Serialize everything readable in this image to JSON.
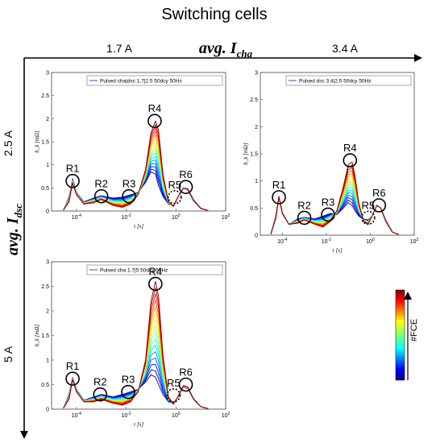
{
  "figure": {
    "title": "Switching cells",
    "x_axis_label": "avg. I",
    "x_axis_sub": "cha",
    "y_axis_label": "avg. I",
    "y_axis_sub": "dsc",
    "col_labels": [
      "1.7 A",
      "3.4 A"
    ],
    "row_labels": [
      "2.5 A",
      "5 A"
    ],
    "colorbar_label": "#FCE"
  },
  "chart_data": [
    {
      "type": "line",
      "legend": "Pulsed cha|dsc 1.7|2.5 50dcy 50Hz",
      "ylabel": "h_k [mΩ]",
      "xlabel": "τ [s]",
      "x_scale": "log",
      "xlim": [
        1e-05,
        100
      ],
      "ylim": [
        0,
        3
      ],
      "yticks": [
        0,
        0.5,
        1,
        1.5,
        2,
        2.5,
        3
      ],
      "xticks": [
        "10^-4",
        "10^-2",
        "10^0",
        "10^2"
      ],
      "annotations": [
        {
          "label": "R1",
          "tau": 7e-05,
          "h": 0.65,
          "style": "solid"
        },
        {
          "label": "R2",
          "tau": 0.001,
          "h": 0.32,
          "style": "solid"
        },
        {
          "label": "R3",
          "tau": 0.013,
          "h": 0.32,
          "style": "solid"
        },
        {
          "label": "R4",
          "tau": 0.14,
          "h": 1.95,
          "style": "solid"
        },
        {
          "label": "R5",
          "tau": 0.9,
          "h": 0.3,
          "style": "dotted"
        },
        {
          "label": "R6",
          "tau": 2.5,
          "h": 0.52,
          "style": "solid"
        }
      ],
      "first_curve": {
        "x": [
          3e-05,
          5e-05,
          7e-05,
          0.0001,
          0.0002,
          0.0005,
          0.001,
          0.003,
          0.007,
          0.015,
          0.03,
          0.06,
          0.1,
          0.15,
          0.2,
          0.3,
          0.5,
          0.8,
          1.2,
          2,
          3,
          5,
          10,
          20
        ],
        "y": [
          0.02,
          0.3,
          0.7,
          0.4,
          0.2,
          0.28,
          0.33,
          0.28,
          0.3,
          0.35,
          0.4,
          0.62,
          0.85,
          0.8,
          0.55,
          0.32,
          0.15,
          0.12,
          0.3,
          0.5,
          0.45,
          0.22,
          0.05,
          0.01
        ]
      },
      "last_curve": {
        "x": [
          3e-05,
          5e-05,
          7e-05,
          0.0001,
          0.0002,
          0.0005,
          0.001,
          0.003,
          0.007,
          0.015,
          0.03,
          0.06,
          0.1,
          0.15,
          0.2,
          0.3,
          0.5,
          0.8,
          1.2,
          2,
          3,
          5,
          10,
          20
        ],
        "y": [
          0.02,
          0.2,
          0.6,
          0.35,
          0.15,
          0.18,
          0.25,
          0.12,
          0.08,
          0.15,
          0.35,
          0.9,
          1.7,
          1.95,
          1.75,
          0.8,
          0.2,
          0.1,
          0.3,
          0.5,
          0.48,
          0.25,
          0.06,
          0.01
        ]
      }
    },
    {
      "type": "line",
      "legend": "Pulsed dsc 3.4|2.5 50dcy 50Hz",
      "ylabel": "h_k [mΩ]",
      "xlabel": "τ [s]",
      "x_scale": "log",
      "xlim": [
        1e-05,
        100
      ],
      "ylim": [
        0,
        3
      ],
      "yticks": [
        0,
        0.5,
        1,
        1.5,
        2,
        2.5,
        3
      ],
      "xticks": [
        "10^-4",
        "10^-2",
        "10^0",
        "10^2"
      ],
      "annotations": [
        {
          "label": "R1",
          "tau": 7e-05,
          "h": 0.7,
          "style": "solid"
        },
        {
          "label": "R2",
          "tau": 0.001,
          "h": 0.32,
          "style": "solid"
        },
        {
          "label": "R3",
          "tau": 0.012,
          "h": 0.38,
          "style": "solid"
        },
        {
          "label": "R4",
          "tau": 0.12,
          "h": 1.38,
          "style": "solid"
        },
        {
          "label": "R5",
          "tau": 0.8,
          "h": 0.32,
          "style": "dotted"
        },
        {
          "label": "R6",
          "tau": 2.5,
          "h": 0.55,
          "style": "solid"
        }
      ],
      "first_curve": {
        "x": [
          3e-05,
          5e-05,
          7e-05,
          0.0001,
          0.0002,
          0.0005,
          0.001,
          0.003,
          0.007,
          0.015,
          0.03,
          0.06,
          0.1,
          0.15,
          0.2,
          0.3,
          0.5,
          0.8,
          1.2,
          2,
          3,
          5,
          10,
          20
        ],
        "y": [
          0.02,
          0.35,
          0.72,
          0.42,
          0.2,
          0.3,
          0.33,
          0.3,
          0.35,
          0.4,
          0.38,
          0.5,
          0.6,
          0.55,
          0.45,
          0.35,
          0.3,
          0.28,
          0.35,
          0.55,
          0.5,
          0.25,
          0.06,
          0.01
        ]
      },
      "last_curve": {
        "x": [
          3e-05,
          5e-05,
          7e-05,
          0.0001,
          0.0002,
          0.0005,
          0.001,
          0.003,
          0.007,
          0.015,
          0.03,
          0.06,
          0.1,
          0.15,
          0.2,
          0.3,
          0.5,
          0.8,
          1.2,
          2,
          3,
          5,
          10,
          20
        ],
        "y": [
          0.02,
          0.3,
          0.7,
          0.4,
          0.2,
          0.22,
          0.28,
          0.2,
          0.15,
          0.25,
          0.45,
          0.9,
          1.3,
          1.35,
          1.1,
          0.6,
          0.25,
          0.2,
          0.35,
          0.55,
          0.5,
          0.28,
          0.06,
          0.01
        ]
      }
    },
    {
      "type": "line",
      "legend": "Pulsed cha 1.7|5 50dcy 50Hz",
      "ylabel": "h_k [mΩ]",
      "xlabel": "τ [s]",
      "x_scale": "log",
      "xlim": [
        1e-05,
        100
      ],
      "ylim": [
        0,
        3
      ],
      "yticks": [
        0,
        0.5,
        1,
        1.5,
        2,
        2.5,
        3
      ],
      "xticks": [
        "10^-4",
        "10^-2",
        "10^0",
        "10^2"
      ],
      "annotations": [
        {
          "label": "R1",
          "tau": 7e-05,
          "h": 0.62,
          "style": "solid"
        },
        {
          "label": "R2",
          "tau": 0.0009,
          "h": 0.3,
          "style": "solid"
        },
        {
          "label": "R3",
          "tau": 0.012,
          "h": 0.35,
          "style": "solid"
        },
        {
          "label": "R4",
          "tau": 0.15,
          "h": 2.55,
          "style": "solid"
        },
        {
          "label": "R5",
          "tau": 0.8,
          "h": 0.28,
          "style": "dotted"
        },
        {
          "label": "R6",
          "tau": 2.5,
          "h": 0.5,
          "style": "solid"
        }
      ],
      "first_curve": {
        "x": [
          3e-05,
          5e-05,
          7e-05,
          0.0001,
          0.0002,
          0.0005,
          0.001,
          0.003,
          0.007,
          0.015,
          0.03,
          0.06,
          0.1,
          0.15,
          0.2,
          0.3,
          0.5,
          0.8,
          1.2,
          2,
          3,
          5,
          10,
          20
        ],
        "y": [
          0.02,
          0.3,
          0.65,
          0.4,
          0.18,
          0.25,
          0.3,
          0.25,
          0.3,
          0.35,
          0.4,
          0.55,
          0.7,
          0.65,
          0.5,
          0.3,
          0.15,
          0.12,
          0.25,
          0.45,
          0.42,
          0.2,
          0.05,
          0.01
        ]
      },
      "last_curve": {
        "x": [
          3e-05,
          5e-05,
          7e-05,
          0.0001,
          0.0002,
          0.0005,
          0.001,
          0.003,
          0.007,
          0.015,
          0.03,
          0.06,
          0.1,
          0.15,
          0.2,
          0.3,
          0.5,
          0.8,
          1.2,
          2,
          3,
          5,
          10,
          20
        ],
        "y": [
          0.02,
          0.2,
          0.6,
          0.35,
          0.15,
          0.15,
          0.2,
          0.12,
          0.08,
          0.15,
          0.35,
          1.0,
          2.2,
          2.6,
          2.3,
          1.1,
          0.25,
          0.1,
          0.25,
          0.48,
          0.45,
          0.22,
          0.05,
          0.01
        ]
      }
    }
  ]
}
